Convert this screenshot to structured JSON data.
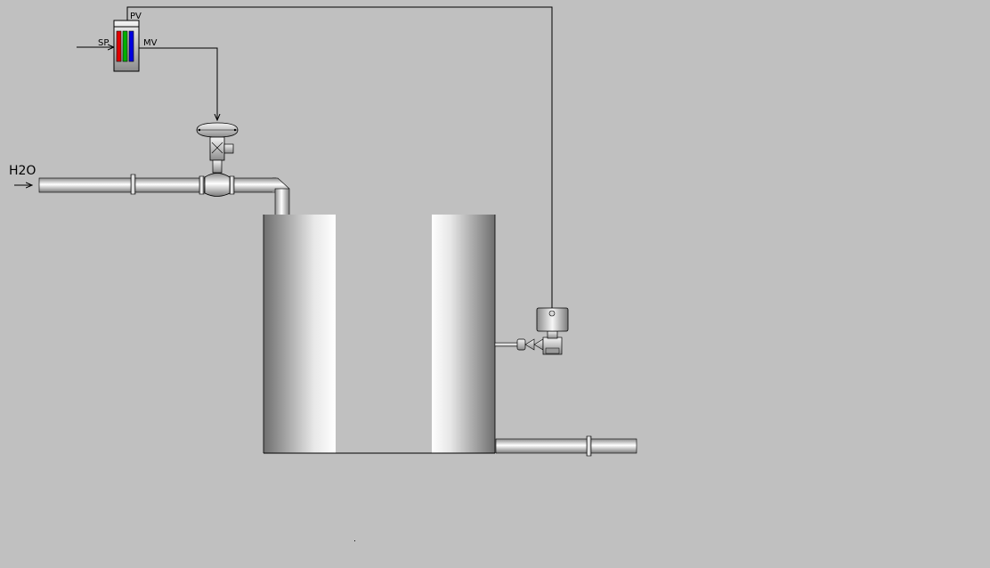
{
  "labels": {
    "water": "H2O",
    "setpoint": "SP",
    "process_value": "PV",
    "manipulated_value": "MV"
  },
  "colors": {
    "background": "#c0c0c0",
    "controller_bar_1": "#e00000",
    "controller_bar_2": "#00b000",
    "controller_bar_3": "#0000e0"
  }
}
